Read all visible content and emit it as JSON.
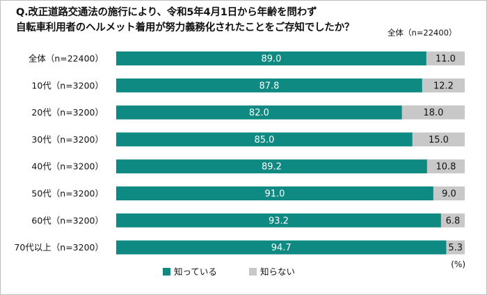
{
  "title": {
    "line1": "Q.改正道路交通法の施行により、令和5年4月1日から年齢を問わず",
    "line2": "自転車利用者のヘルメット着用が努力義務化されたことをご存知でしたか？"
  },
  "total_label": "全体（n=22400）",
  "unit_label": "(%)",
  "colors": {
    "know": "#0e8a83",
    "dont_know": "#c8c8c8"
  },
  "chart_data": {
    "type": "bar",
    "orientation": "horizontal",
    "stacked": true,
    "title": "Q.改正道路交通法の施行により、令和5年4月1日から年齢を問わず自転車利用者のヘルメット着用が努力義務化されたことをご存知でしたか？",
    "categories": [
      "全体（n=22400）",
      "10代（n=3200）",
      "20代（n=3200）",
      "30代（n=3200）",
      "40代（n=3200）",
      "50代（n=3200）",
      "60代（n=3200）",
      "70代以上（n=3200）"
    ],
    "series": [
      {
        "name": "知っている",
        "values": [
          89.0,
          87.8,
          82.0,
          85.0,
          89.2,
          91.0,
          93.2,
          94.7
        ],
        "labels": [
          "89.0",
          "87.8",
          "82.0",
          "85.0",
          "89.2",
          "91.0",
          "93.2",
          "94.7"
        ]
      },
      {
        "name": "知らない",
        "values": [
          11.0,
          12.2,
          18.0,
          15.0,
          10.8,
          9.0,
          6.8,
          5.3
        ],
        "labels": [
          "11.0",
          "12.2",
          "18.0",
          "15.0",
          "10.8",
          "9.0",
          "6.8",
          "5.3"
        ]
      }
    ],
    "xlim": [
      0,
      100
    ],
    "xlabel": "(%)",
    "legend": "bottom"
  }
}
